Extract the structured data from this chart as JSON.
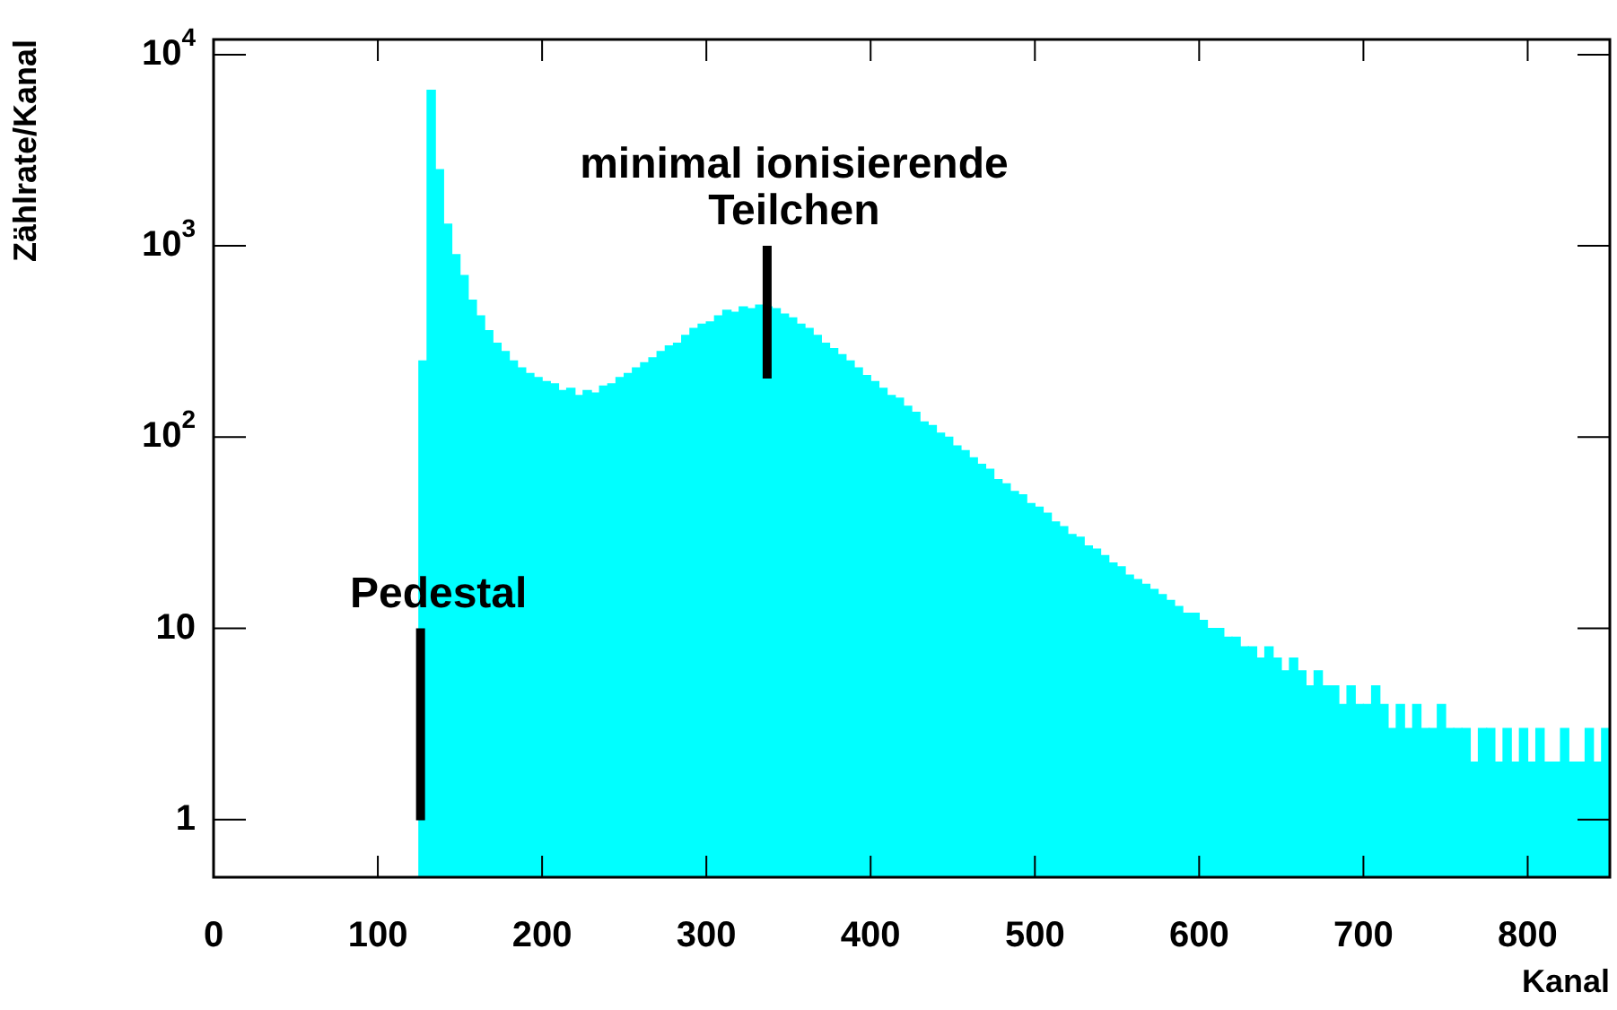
{
  "chart_data": {
    "type": "histogram",
    "xlabel": "Kanal",
    "ylabel": "Zählrate/Kanal",
    "color": "#00ffff",
    "bins": [
      125,
      130,
      135,
      140,
      145,
      150,
      155,
      160,
      165,
      170,
      175,
      180,
      185,
      190,
      195,
      200,
      205,
      210,
      215,
      220,
      225,
      230,
      235,
      240,
      245,
      250,
      255,
      260,
      265,
      270,
      275,
      280,
      285,
      290,
      295,
      300,
      305,
      310,
      315,
      320,
      325,
      330,
      335,
      340,
      345,
      350,
      355,
      360,
      365,
      370,
      375,
      380,
      385,
      390,
      395,
      400,
      405,
      410,
      415,
      420,
      425,
      430,
      435,
      440,
      445,
      450,
      455,
      460,
      465,
      470,
      475,
      480,
      485,
      490,
      495,
      500,
      505,
      510,
      515,
      520,
      525,
      530,
      535,
      540,
      545,
      550,
      555,
      560,
      565,
      570,
      575,
      580,
      585,
      590,
      595,
      600,
      605,
      610,
      615,
      620,
      625,
      630,
      635,
      640,
      645,
      650,
      655,
      660,
      665,
      670,
      675,
      680,
      685,
      690,
      695,
      700,
      705,
      710,
      715,
      720,
      725,
      730,
      735,
      740,
      745,
      750,
      755,
      760,
      765,
      770,
      775,
      780,
      785,
      790,
      795,
      800,
      805,
      810,
      815,
      820,
      825,
      830,
      835,
      840,
      845,
      850
    ],
    "values": [
      250,
      6500,
      2500,
      1300,
      900,
      700,
      520,
      430,
      360,
      310,
      280,
      250,
      230,
      215,
      205,
      195,
      190,
      175,
      180,
      165,
      175,
      170,
      185,
      190,
      205,
      215,
      230,
      245,
      260,
      280,
      300,
      310,
      340,
      370,
      390,
      400,
      430,
      460,
      450,
      480,
      470,
      490,
      480,
      470,
      440,
      420,
      390,
      370,
      340,
      310,
      290,
      270,
      250,
      230,
      210,
      195,
      180,
      165,
      160,
      145,
      135,
      120,
      115,
      105,
      100,
      90,
      85,
      78,
      72,
      68,
      60,
      57,
      52,
      50,
      45,
      43,
      40,
      36,
      34,
      31,
      30,
      27,
      26,
      24,
      22,
      21,
      19,
      18,
      17,
      16,
      15,
      14,
      13,
      12,
      12,
      11,
      10,
      10,
      9,
      9,
      8,
      8,
      7,
      8,
      7,
      6,
      7,
      6,
      5,
      6,
      5,
      5,
      4,
      5,
      4,
      4,
      5,
      4,
      3,
      4,
      3,
      4,
      3,
      3,
      4,
      3,
      3,
      3,
      2,
      3,
      3,
      2,
      3,
      2,
      3,
      2,
      3,
      2,
      2,
      3,
      2,
      2,
      3,
      2,
      3
    ],
    "log": true,
    "grid": false,
    "legend": false,
    "xlim": [
      0,
      850
    ],
    "xticks": [
      0,
      100,
      200,
      300,
      400,
      500,
      600,
      700,
      800
    ],
    "ylim": [
      0.5,
      12000
    ],
    "yticks": [
      1,
      10,
      {
        "value": 100,
        "label": "10$^{2}$"
      },
      {
        "value": 1000,
        "label": "10$^{3}$"
      },
      {
        "value": 10000,
        "label": "10$^{4}$"
      }
    ],
    "annotations": [
      {
        "text": "Pedestal",
        "x": 126,
        "y": 10
      },
      {
        "text": "minimal ionisierende\nTeilchen",
        "x": 337,
        "y": 480
      }
    ]
  }
}
